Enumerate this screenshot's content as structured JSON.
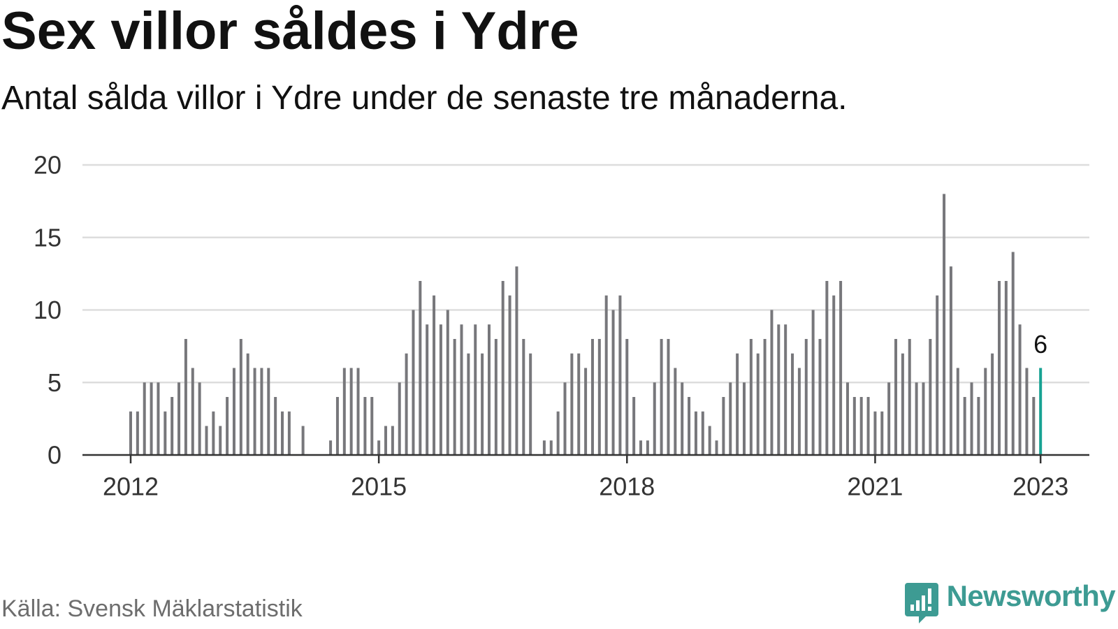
{
  "title": "Sex villor såldes i Ydre",
  "subtitle": "Antal sålda villor i Ydre under de senaste tre månaderna.",
  "source": "Källa: Svensk Mäklarstatistik",
  "brand": {
    "name": "Newsworthy",
    "icon": "newsworthy-logo-icon"
  },
  "colors": {
    "bar": "#77777b",
    "highlight_bar": "#17a293",
    "gridline": "#dddddd",
    "axis": "#333333",
    "brand": "#3d9b93",
    "title": "#111111",
    "source": "#6d6d6d"
  },
  "chart_data": {
    "type": "bar",
    "title": "Sex villor såldes i Ydre",
    "subtitle": "Antal sålda villor i Ydre under de senaste tre månaderna.",
    "ylim": [
      0,
      20
    ],
    "yticks": [
      0,
      5,
      10,
      15,
      20
    ],
    "xticks": [
      "2012",
      "2015",
      "2018",
      "2021",
      "2023"
    ],
    "grid": true,
    "x": [
      "2012-01",
      "2012-02",
      "2012-03",
      "2012-04",
      "2012-05",
      "2012-06",
      "2012-07",
      "2012-08",
      "2012-09",
      "2012-10",
      "2012-11",
      "2012-12",
      "2013-01",
      "2013-02",
      "2013-03",
      "2013-04",
      "2013-05",
      "2013-06",
      "2013-07",
      "2013-08",
      "2013-09",
      "2013-10",
      "2013-11",
      "2013-12",
      "2014-01",
      "2014-02",
      "2014-03",
      "2014-04",
      "2014-05",
      "2014-06",
      "2014-07",
      "2014-08",
      "2014-09",
      "2014-10",
      "2014-11",
      "2014-12",
      "2015-01",
      "2015-02",
      "2015-03",
      "2015-04",
      "2015-05",
      "2015-06",
      "2015-07",
      "2015-08",
      "2015-09",
      "2015-10",
      "2015-11",
      "2015-12",
      "2016-01",
      "2016-02",
      "2016-03",
      "2016-04",
      "2016-05",
      "2016-06",
      "2016-07",
      "2016-08",
      "2016-09",
      "2016-10",
      "2016-11",
      "2016-12",
      "2017-01",
      "2017-02",
      "2017-03",
      "2017-04",
      "2017-05",
      "2017-06",
      "2017-07",
      "2017-08",
      "2017-09",
      "2017-10",
      "2017-11",
      "2017-12",
      "2018-01",
      "2018-02",
      "2018-03",
      "2018-04",
      "2018-05",
      "2018-06",
      "2018-07",
      "2018-08",
      "2018-09",
      "2018-10",
      "2018-11",
      "2018-12",
      "2019-01",
      "2019-02",
      "2019-03",
      "2019-04",
      "2019-05",
      "2019-06",
      "2019-07",
      "2019-08",
      "2019-09",
      "2019-10",
      "2019-11",
      "2019-12",
      "2020-01",
      "2020-02",
      "2020-03",
      "2020-04",
      "2020-05",
      "2020-06",
      "2020-07",
      "2020-08",
      "2020-09",
      "2020-10",
      "2020-11",
      "2020-12",
      "2021-01",
      "2021-02",
      "2021-03",
      "2021-04",
      "2021-05",
      "2021-06",
      "2021-07",
      "2021-08",
      "2021-09",
      "2021-10",
      "2021-11",
      "2021-12",
      "2022-01",
      "2022-02",
      "2022-03",
      "2022-04",
      "2022-05",
      "2022-06",
      "2022-07",
      "2022-08",
      "2022-09",
      "2022-10",
      "2022-11",
      "2022-12",
      "2023-01"
    ],
    "values": [
      3,
      3,
      5,
      5,
      5,
      3,
      4,
      5,
      8,
      6,
      5,
      2,
      3,
      2,
      4,
      6,
      8,
      7,
      6,
      6,
      6,
      4,
      3,
      3,
      0,
      2,
      0,
      0,
      0,
      1,
      4,
      6,
      6,
      6,
      4,
      4,
      1,
      2,
      2,
      5,
      7,
      10,
      12,
      9,
      11,
      9,
      10,
      8,
      9,
      7,
      9,
      7,
      9,
      8,
      12,
      11,
      13,
      8,
      7,
      0,
      1,
      1,
      3,
      5,
      7,
      7,
      6,
      8,
      8,
      11,
      10,
      11,
      8,
      4,
      1,
      1,
      5,
      8,
      8,
      6,
      5,
      4,
      3,
      3,
      2,
      1,
      4,
      5,
      7,
      5,
      8,
      7,
      8,
      10,
      9,
      9,
      7,
      6,
      8,
      10,
      8,
      12,
      11,
      12,
      5,
      4,
      4,
      4,
      3,
      3,
      5,
      8,
      7,
      8,
      5,
      5,
      8,
      11,
      18,
      13,
      6,
      4,
      5,
      4,
      6,
      7,
      12,
      12,
      14,
      9,
      6,
      4,
      6
    ],
    "highlight": {
      "x": "2023-01",
      "label": "6"
    }
  }
}
